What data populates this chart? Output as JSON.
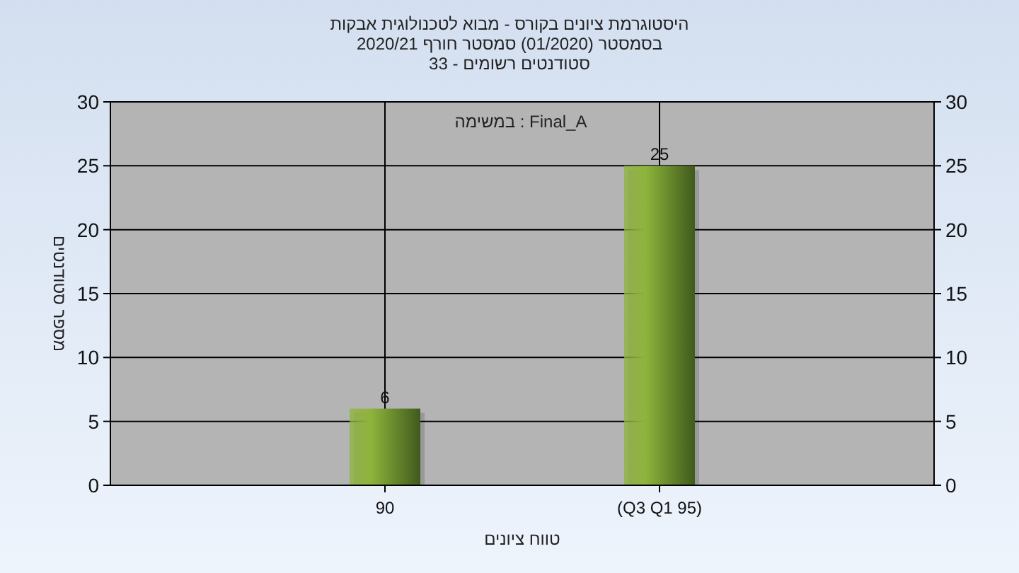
{
  "chart_data": {
    "type": "bar",
    "title": "היסטוגרמת ציונים בקורס - מבוא לטכנולוגית אבקות",
    "subtitle": "בסמסטר (01/2020) סמסטר חורף 2020/21\nסטודנטים רשומים - 33",
    "annotations": [
      "במשימה : Final_A"
    ],
    "xlabel": "טווח ציונים",
    "ylabel": "מספר סטודנטים",
    "categories": [
      "90",
      "(Q3 Q1 95)"
    ],
    "values": [
      6,
      25
    ],
    "color": "#8fb43c",
    "data_labels": true,
    "ylim": [
      0,
      30
    ],
    "yticks": [
      0,
      5,
      10,
      15,
      20,
      25,
      30
    ],
    "y2lim": [
      0,
      30
    ],
    "y2ticks": [
      0,
      5,
      10,
      15,
      20,
      25,
      30
    ],
    "grid": true
  }
}
